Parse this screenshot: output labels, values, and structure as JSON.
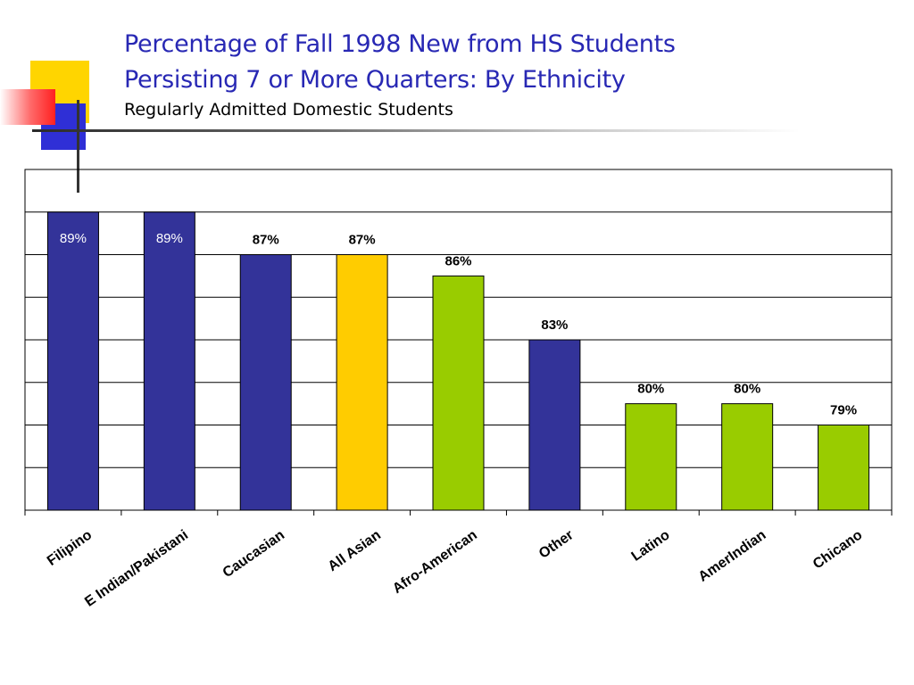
{
  "slide": {
    "title_line1": "Percentage of Fall 1998 New from HS Students",
    "title_line2": "Persisting 7 or More Quarters: By Ethnicity",
    "subtitle": "Regularly Admitted Domestic Students"
  },
  "chart_data": {
    "type": "bar",
    "title": "",
    "xlabel": "",
    "ylabel": "",
    "categories": [
      "Filipino",
      "E Indian/Pakistani",
      "Caucasian",
      "All Asian",
      "Afro-American",
      "Other",
      "Latino",
      "AmerIndian",
      "Chicano"
    ],
    "values": [
      89,
      89,
      87,
      87,
      86,
      83,
      80,
      80,
      79
    ],
    "data_labels": [
      "89%",
      "89%",
      "87%",
      "87%",
      "86%",
      "83%",
      "80%",
      "80%",
      "79%"
    ],
    "bar_colors": [
      "#333399",
      "#333399",
      "#333399",
      "#ffcc00",
      "#99cc00",
      "#333399",
      "#99cc00",
      "#99cc00",
      "#99cc00"
    ],
    "ylim": [
      75,
      91
    ],
    "grid": true,
    "y_ticks_shown": false
  },
  "colors": {
    "title": "#2828b4",
    "navy_bar": "#333399",
    "gold_bar": "#ffcc00",
    "green_bar": "#99cc00"
  }
}
